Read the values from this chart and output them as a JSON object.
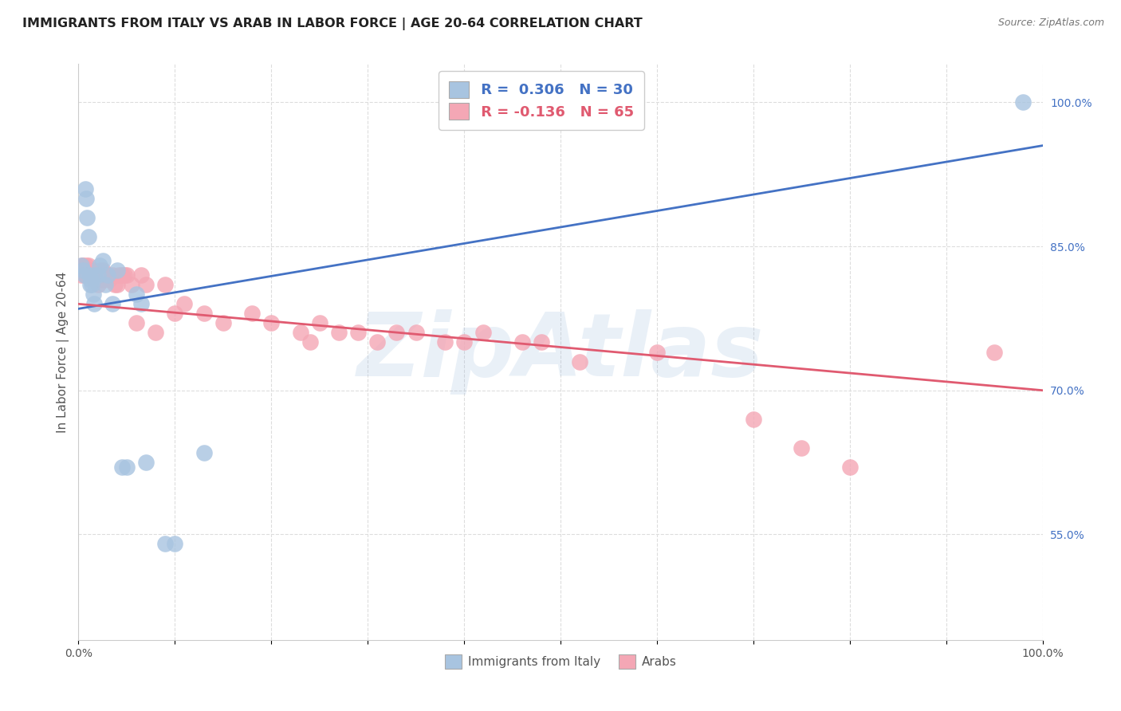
{
  "title": "IMMIGRANTS FROM ITALY VS ARAB IN LABOR FORCE | AGE 20-64 CORRELATION CHART",
  "source": "Source: ZipAtlas.com",
  "ylabel_label": "In Labor Force | Age 20-64",
  "xlim": [
    0,
    1
  ],
  "ylim": [
    0.44,
    1.04
  ],
  "x_ticks": [
    0,
    0.1,
    0.2,
    0.3,
    0.4,
    0.5,
    0.6,
    0.7,
    0.8,
    0.9,
    1.0
  ],
  "x_tick_labels": [
    "0.0%",
    "",
    "",
    "",
    "",
    "",
    "",
    "",
    "",
    "",
    "100.0%"
  ],
  "y_ticks_right": [
    0.55,
    0.7,
    0.85,
    1.0
  ],
  "y_tick_labels_right": [
    "55.0%",
    "70.0%",
    "85.0%",
    "100.0%"
  ],
  "italy_color": "#a8c4e0",
  "arab_color": "#f4a7b5",
  "italy_line_color": "#4472c4",
  "arab_line_color": "#e05a70",
  "italy_R": 0.306,
  "italy_N": 30,
  "arab_R": -0.136,
  "arab_N": 65,
  "italy_line_x0": 0.0,
  "italy_line_y0": 0.785,
  "italy_line_x1": 1.0,
  "italy_line_y1": 0.955,
  "arab_line_x0": 0.0,
  "arab_line_y0": 0.79,
  "arab_line_x1": 1.0,
  "arab_line_y1": 0.7,
  "italy_x": [
    0.003,
    0.005,
    0.006,
    0.007,
    0.008,
    0.009,
    0.01,
    0.011,
    0.012,
    0.013,
    0.014,
    0.015,
    0.016,
    0.017,
    0.02,
    0.022,
    0.025,
    0.028,
    0.03,
    0.035,
    0.04,
    0.045,
    0.05,
    0.06,
    0.065,
    0.07,
    0.09,
    0.1,
    0.13,
    0.98
  ],
  "italy_y": [
    0.83,
    0.825,
    0.82,
    0.91,
    0.9,
    0.88,
    0.86,
    0.82,
    0.81,
    0.815,
    0.81,
    0.8,
    0.79,
    0.82,
    0.82,
    0.83,
    0.835,
    0.81,
    0.82,
    0.79,
    0.825,
    0.62,
    0.62,
    0.8,
    0.79,
    0.625,
    0.54,
    0.54,
    0.635,
    1.0
  ],
  "arab_x": [
    0.003,
    0.004,
    0.005,
    0.006,
    0.007,
    0.008,
    0.009,
    0.01,
    0.011,
    0.012,
    0.013,
    0.014,
    0.015,
    0.016,
    0.017,
    0.018,
    0.019,
    0.02,
    0.021,
    0.022,
    0.023,
    0.024,
    0.025,
    0.026,
    0.028,
    0.03,
    0.032,
    0.035,
    0.038,
    0.04,
    0.042,
    0.045,
    0.048,
    0.05,
    0.055,
    0.06,
    0.065,
    0.07,
    0.08,
    0.09,
    0.1,
    0.11,
    0.13,
    0.15,
    0.18,
    0.2,
    0.23,
    0.24,
    0.25,
    0.27,
    0.29,
    0.31,
    0.33,
    0.35,
    0.38,
    0.4,
    0.42,
    0.46,
    0.48,
    0.52,
    0.6,
    0.7,
    0.75,
    0.8,
    0.95
  ],
  "arab_y": [
    0.82,
    0.83,
    0.83,
    0.825,
    0.82,
    0.83,
    0.825,
    0.83,
    0.82,
    0.82,
    0.825,
    0.825,
    0.82,
    0.815,
    0.82,
    0.82,
    0.815,
    0.81,
    0.82,
    0.815,
    0.825,
    0.82,
    0.825,
    0.815,
    0.82,
    0.82,
    0.815,
    0.82,
    0.81,
    0.81,
    0.82,
    0.82,
    0.82,
    0.82,
    0.81,
    0.77,
    0.82,
    0.81,
    0.76,
    0.81,
    0.78,
    0.79,
    0.78,
    0.77,
    0.78,
    0.77,
    0.76,
    0.75,
    0.77,
    0.76,
    0.76,
    0.75,
    0.76,
    0.76,
    0.75,
    0.75,
    0.76,
    0.75,
    0.75,
    0.73,
    0.74,
    0.67,
    0.64,
    0.62,
    0.74
  ],
  "background_color": "#ffffff",
  "grid_color": "#dddddd",
  "title_fontsize": 11.5,
  "label_fontsize": 11,
  "tick_fontsize": 10,
  "legend_fontsize": 13,
  "watermark_text": "ZipAtlas",
  "watermark_color": "#8ab0d8",
  "watermark_alpha": 0.18
}
